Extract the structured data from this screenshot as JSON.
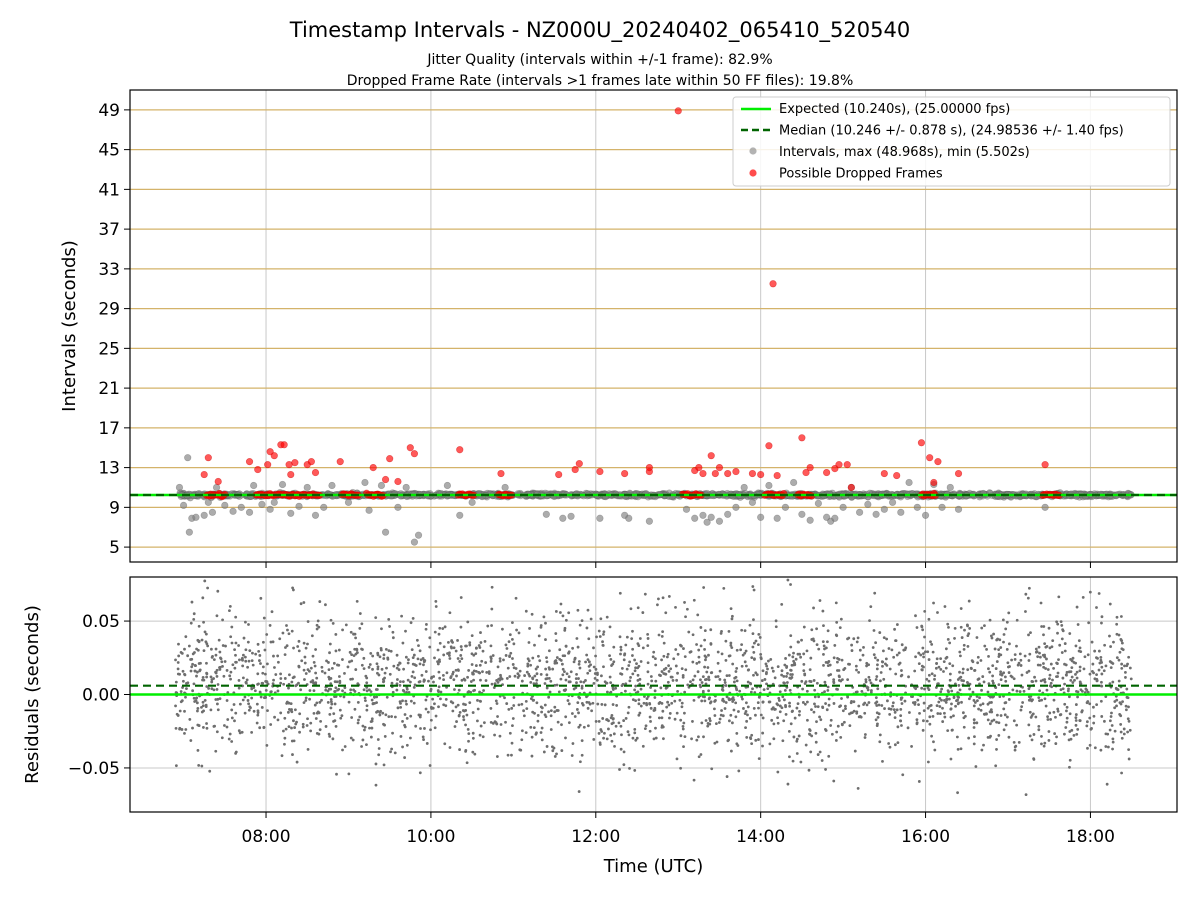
{
  "chart_data": [
    {
      "type": "scatter",
      "title": "Timestamp Intervals - NZ000U_20240402_065410_520540",
      "subtitle_lines": [
        "Jitter Quality (intervals within +/-1 frame): 82.9%",
        "Dropped Frame Rate (intervals >1 frames late within 50 FF files): 19.8%"
      ],
      "xlabel": "",
      "ylabel": "Intervals (seconds)",
      "x_unit": "hours UTC",
      "xlim": [
        6.35,
        19.05
      ],
      "ylim": [
        3.5,
        51.0
      ],
      "yticks": [
        5,
        9,
        13,
        17,
        21,
        25,
        29,
        33,
        37,
        41,
        45,
        49
      ],
      "xticks": [
        8,
        10,
        12,
        14,
        16,
        18
      ],
      "xtick_labels": [
        "",
        "",
        "",
        "",
        "",
        ""
      ],
      "grid": true,
      "legend_position": "top-right",
      "legend": [
        "Expected (10.240s), (25.00000 fps)",
        "Median (10.246 +/- 0.878 s), (24.98536 +/- 1.40 fps)",
        "Intervals, max (48.968s), min (5.502s)",
        "Possible Dropped Frames"
      ],
      "expected_value": 10.24,
      "median_value": 10.246,
      "colors": {
        "expected": "#00ee00",
        "median": "#006400",
        "intervals": "#808080",
        "dropped": "#ff0000",
        "ygrid": "#d4b36a",
        "xgrid": "#c8c8c8"
      },
      "series": [
        {
          "role": "intervals",
          "points": [
            [
              6.95,
              11.0
            ],
            [
              7.0,
              9.2
            ],
            [
              7.05,
              14.0
            ],
            [
              7.07,
              6.5
            ],
            [
              7.1,
              7.9
            ],
            [
              7.15,
              8.0
            ],
            [
              7.25,
              8.2
            ],
            [
              7.3,
              9.5
            ],
            [
              7.35,
              8.5
            ],
            [
              7.4,
              11.0
            ],
            [
              7.5,
              9.2
            ],
            [
              7.6,
              8.6
            ],
            [
              7.7,
              9.0
            ],
            [
              7.8,
              8.5
            ],
            [
              7.85,
              11.2
            ],
            [
              7.95,
              9.3
            ],
            [
              8.05,
              8.8
            ],
            [
              8.1,
              9.5
            ],
            [
              8.2,
              11.3
            ],
            [
              8.3,
              8.4
            ],
            [
              8.4,
              9.1
            ],
            [
              8.5,
              11.0
            ],
            [
              8.6,
              8.2
            ],
            [
              8.7,
              9.0
            ],
            [
              8.8,
              11.2
            ],
            [
              9.0,
              9.5
            ],
            [
              9.2,
              11.5
            ],
            [
              9.25,
              8.7
            ],
            [
              9.4,
              11.2
            ],
            [
              9.45,
              6.5
            ],
            [
              9.6,
              9.0
            ],
            [
              9.7,
              11.0
            ],
            [
              9.8,
              5.5
            ],
            [
              9.85,
              6.2
            ],
            [
              10.2,
              11.2
            ],
            [
              10.35,
              8.2
            ],
            [
              10.5,
              9.5
            ],
            [
              10.9,
              11.0
            ],
            [
              11.4,
              8.3
            ],
            [
              11.6,
              7.9
            ],
            [
              11.7,
              8.1
            ],
            [
              12.05,
              7.9
            ],
            [
              12.35,
              8.2
            ],
            [
              12.4,
              7.9
            ],
            [
              12.65,
              7.6
            ],
            [
              13.1,
              8.8
            ],
            [
              13.2,
              7.9
            ],
            [
              13.3,
              8.2
            ],
            [
              13.35,
              7.5
            ],
            [
              13.4,
              8.0
            ],
            [
              13.5,
              7.6
            ],
            [
              13.6,
              8.3
            ],
            [
              13.7,
              9.0
            ],
            [
              13.8,
              11.0
            ],
            [
              13.9,
              9.5
            ],
            [
              14.0,
              8.0
            ],
            [
              14.1,
              11.2
            ],
            [
              14.2,
              7.9
            ],
            [
              14.3,
              9.0
            ],
            [
              14.4,
              11.5
            ],
            [
              14.5,
              8.3
            ],
            [
              14.6,
              7.7
            ],
            [
              14.7,
              9.4
            ],
            [
              14.8,
              8.0
            ],
            [
              14.85,
              7.6
            ],
            [
              14.9,
              7.9
            ],
            [
              15.0,
              9.0
            ],
            [
              15.1,
              11.0
            ],
            [
              15.2,
              8.5
            ],
            [
              15.3,
              9.3
            ],
            [
              15.4,
              8.3
            ],
            [
              15.5,
              8.8
            ],
            [
              15.6,
              9.5
            ],
            [
              15.7,
              8.5
            ],
            [
              15.8,
              11.5
            ],
            [
              15.9,
              9.0
            ],
            [
              16.0,
              8.2
            ],
            [
              16.1,
              11.3
            ],
            [
              16.2,
              9.0
            ],
            [
              16.3,
              11.0
            ],
            [
              16.4,
              8.8
            ],
            [
              16.7,
              10.4
            ],
            [
              17.0,
              10.3
            ],
            [
              17.45,
              9.0
            ],
            [
              17.6,
              10.4
            ],
            [
              18.0,
              10.3
            ]
          ]
        },
        {
          "role": "dropped",
          "points": [
            [
              7.25,
              12.3
            ],
            [
              7.3,
              14.0
            ],
            [
              7.42,
              11.6
            ],
            [
              7.8,
              13.6
            ],
            [
              7.9,
              12.8
            ],
            [
              8.02,
              13.3
            ],
            [
              8.05,
              14.6
            ],
            [
              8.1,
              14.2
            ],
            [
              8.18,
              15.3
            ],
            [
              8.22,
              15.3
            ],
            [
              8.28,
              13.3
            ],
            [
              8.3,
              12.3
            ],
            [
              8.35,
              13.5
            ],
            [
              8.5,
              13.3
            ],
            [
              8.55,
              13.6
            ],
            [
              8.6,
              12.5
            ],
            [
              8.9,
              13.6
            ],
            [
              9.3,
              13.0
            ],
            [
              9.45,
              11.8
            ],
            [
              9.5,
              13.9
            ],
            [
              9.6,
              11.6
            ],
            [
              9.75,
              15.0
            ],
            [
              9.8,
              14.4
            ],
            [
              10.35,
              14.8
            ],
            [
              10.85,
              12.4
            ],
            [
              11.55,
              12.3
            ],
            [
              11.75,
              12.8
            ],
            [
              11.8,
              13.4
            ],
            [
              12.05,
              12.6
            ],
            [
              12.35,
              12.4
            ],
            [
              12.65,
              12.6
            ],
            [
              12.65,
              13.0
            ],
            [
              13.0,
              48.9
            ],
            [
              13.2,
              12.7
            ],
            [
              13.25,
              13.0
            ],
            [
              13.3,
              12.4
            ],
            [
              13.4,
              14.2
            ],
            [
              13.45,
              12.4
            ],
            [
              13.5,
              13.0
            ],
            [
              13.6,
              12.4
            ],
            [
              13.7,
              12.6
            ],
            [
              13.9,
              12.4
            ],
            [
              14.0,
              12.3
            ],
            [
              14.1,
              15.2
            ],
            [
              14.15,
              31.5
            ],
            [
              14.2,
              12.2
            ],
            [
              14.5,
              16.0
            ],
            [
              14.55,
              12.5
            ],
            [
              14.6,
              13.0
            ],
            [
              14.8,
              12.5
            ],
            [
              14.9,
              12.9
            ],
            [
              14.95,
              13.3
            ],
            [
              15.05,
              13.3
            ],
            [
              15.1,
              11.0
            ],
            [
              15.5,
              12.4
            ],
            [
              15.65,
              12.2
            ],
            [
              15.95,
              15.5
            ],
            [
              16.05,
              14.0
            ],
            [
              16.1,
              11.5
            ],
            [
              16.15,
              13.6
            ],
            [
              16.4,
              12.4
            ],
            [
              17.45,
              13.3
            ]
          ],
          "clusters": [
            [
              7.28,
              7.5
            ],
            [
              7.88,
              8.1
            ],
            [
              8.1,
              8.52
            ],
            [
              8.52,
              8.65
            ],
            [
              8.92,
              9.12
            ],
            [
              9.22,
              9.42
            ],
            [
              10.33,
              10.52
            ],
            [
              10.82,
              10.98
            ],
            [
              13.05,
              13.28
            ],
            [
              14.05,
              14.28
            ],
            [
              14.45,
              14.62
            ],
            [
              15.95,
              16.12
            ],
            [
              17.42,
              17.62
            ]
          ]
        }
      ]
    },
    {
      "type": "scatter",
      "title": "",
      "xlabel": "Time (UTC)",
      "ylabel": "Residuals (seconds)",
      "x_unit": "hours UTC",
      "xlim": [
        6.35,
        19.05
      ],
      "ylim": [
        -0.08,
        0.08
      ],
      "yticks": [
        -0.05,
        0.0,
        0.05
      ],
      "ytick_labels": [
        "−0.05",
        "0.00",
        "0.05"
      ],
      "xticks": [
        8,
        10,
        12,
        14,
        16,
        18
      ],
      "xtick_labels": [
        "08:00",
        "10:00",
        "12:00",
        "14:00",
        "16:00",
        "18:00"
      ],
      "grid": true,
      "expected_value": 0.0,
      "median_value": 0.006,
      "colors": {
        "expected": "#00ee00",
        "median": "#006400",
        "points": "#6e6e6e",
        "grid": "#c8c8c8"
      },
      "residual_spread": {
        "x_range": [
          6.9,
          18.5
        ],
        "y_range": [
          -0.077,
          0.078
        ],
        "center": 0.006,
        "std": 0.024,
        "approx_count": 2900
      }
    }
  ]
}
